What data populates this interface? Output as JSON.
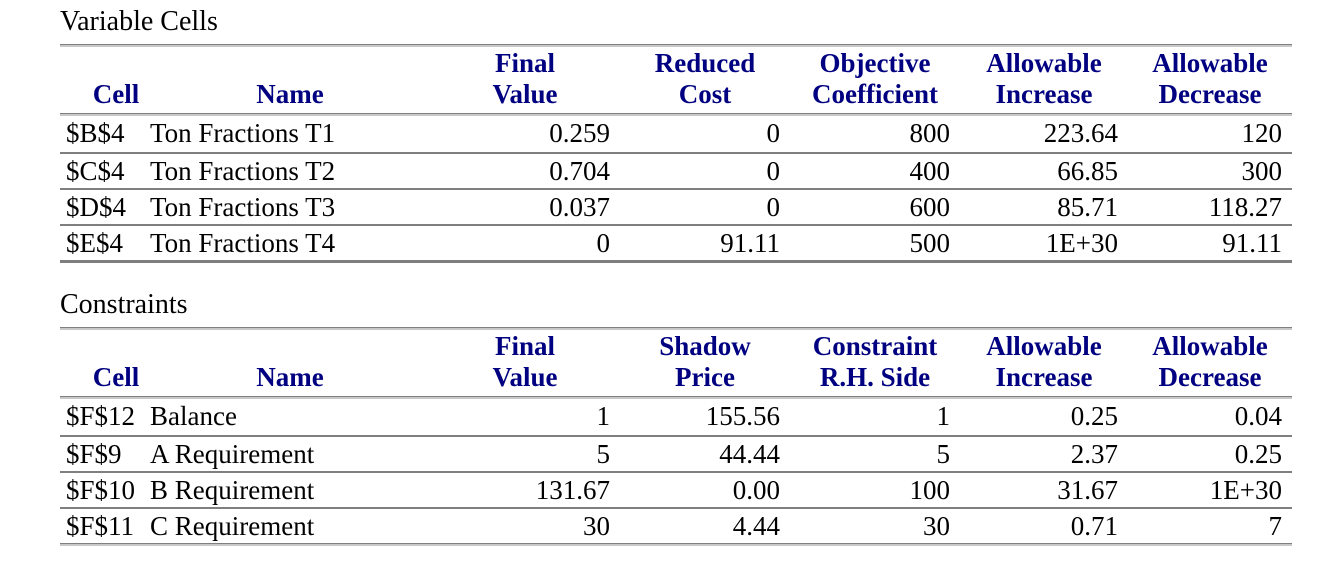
{
  "colors": {
    "header_text": "#000080",
    "body_text": "#000000",
    "rule_dark": "#7f7f7f",
    "rule_light": "#c8c8c8",
    "background": "#ffffff"
  },
  "sections": [
    {
      "title": "Variable Cells",
      "columns": [
        {
          "line1": "",
          "line2": "Cell"
        },
        {
          "line1": "",
          "line2": "Name"
        },
        {
          "line1": "Final",
          "line2": "Value"
        },
        {
          "line1": "Reduced",
          "line2": "Cost"
        },
        {
          "line1": "Objective",
          "line2": "Coefficient"
        },
        {
          "line1": "Allowable",
          "line2": "Increase"
        },
        {
          "line1": "Allowable",
          "line2": "Decrease"
        }
      ],
      "rows": [
        [
          "$B$4",
          "Ton Fractions T1",
          "0.259",
          "0",
          "800",
          "223.64",
          "120"
        ],
        [
          "$C$4",
          "Ton Fractions T2",
          "0.704",
          "0",
          "400",
          "66.85",
          "300"
        ],
        [
          "$D$4",
          "Ton Fractions T3",
          "0.037",
          "0",
          "600",
          "85.71",
          "118.27"
        ],
        [
          "$E$4",
          "Ton Fractions T4",
          "0",
          "91.11",
          "500",
          "1E+30",
          "91.11"
        ]
      ]
    },
    {
      "title": "Constraints",
      "columns": [
        {
          "line1": "",
          "line2": "Cell"
        },
        {
          "line1": "",
          "line2": "Name"
        },
        {
          "line1": "Final",
          "line2": "Value"
        },
        {
          "line1": "Shadow",
          "line2": "Price"
        },
        {
          "line1": "Constraint",
          "line2": "R.H. Side"
        },
        {
          "line1": "Allowable",
          "line2": "Increase"
        },
        {
          "line1": "Allowable",
          "line2": "Decrease"
        }
      ],
      "rows": [
        [
          "$F$12",
          "Balance",
          "1",
          "155.56",
          "1",
          "0.25",
          "0.04"
        ],
        [
          "$F$9",
          "A Requirement",
          "5",
          "44.44",
          "5",
          "2.37",
          "0.25"
        ],
        [
          "$F$10",
          "B Requirement",
          "131.67",
          "0.00",
          "100",
          "31.67",
          "1E+30"
        ],
        [
          "$F$11",
          "C Requirement",
          "30",
          "4.44",
          "30",
          "0.71",
          "7"
        ]
      ]
    }
  ]
}
